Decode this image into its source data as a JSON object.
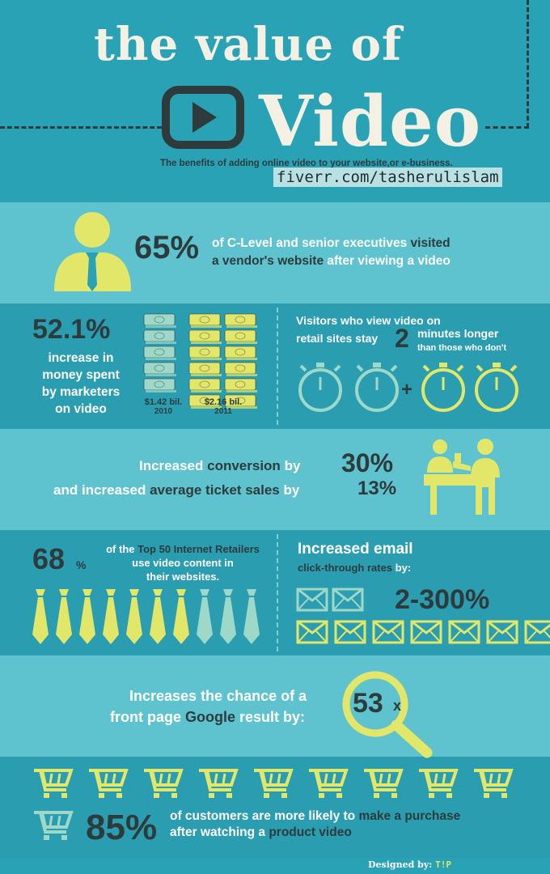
{
  "header": {
    "title_line1": "the value of",
    "title_line2": "Video",
    "subtitle": "The benefits of adding online video to your website,or e-business.",
    "handle": "fiverr.com/tasherulislam"
  },
  "stat_executives": {
    "value": "65%",
    "text_a": "of C-Level and senior executives",
    "text_b": "visited",
    "text_c": "a vendor's website",
    "text_d": "after viewing a video"
  },
  "stat_money": {
    "value": "52.1%",
    "line1": "increase in",
    "line2": "money spent",
    "line3": "by marketers",
    "line4": "on video",
    "bar_2010_amount": "$1.42 bil.",
    "bar_2010_year": "2010",
    "bar_2011_amount": "$2.16 bil.",
    "bar_2011_year": "2011"
  },
  "stat_retail": {
    "line1": "Visitors who view video on",
    "line2a": "retail sites stay",
    "value": "2",
    "line2b": "minutes longer",
    "line3": "than those who don't",
    "plus": "+"
  },
  "stat_conversion": {
    "line1a": "Increased",
    "line1b": "conversion",
    "line1c": "by",
    "value1": "30%",
    "line2a": "and increased",
    "line2b": "average ticket",
    "line2c": "sales",
    "line2d": "by",
    "value2": "13%"
  },
  "stat_retailers": {
    "value": "68",
    "pct": "%",
    "line1a": "of the",
    "line1b": "Top 50 Internet Retailers",
    "line2": "use video content in",
    "line3": "their websites.",
    "highlighted_ties": 7,
    "total_ties": 10
  },
  "stat_email": {
    "line1": "Increased email",
    "line2a": "click-through rates",
    "line2b": "by:",
    "value": "2-300%"
  },
  "stat_google": {
    "line1": "Increases the chance of a",
    "line2a": "front page",
    "line2b": "Google",
    "line2c": "result by:",
    "value": "53",
    "suffix": "x"
  },
  "stat_purchase": {
    "value": "85%",
    "line1a": "of customers are more likely to",
    "line1b": "make a purchase",
    "line2a": "after watching a",
    "line2b": "product video"
  },
  "footer": {
    "designed_by": "Designed by:",
    "brand": "T!P"
  },
  "colors": {
    "accent_yellow": "#e2e76a",
    "muted_teal": "#9ed8c8",
    "dark": "#2d3b3c",
    "band_light": "#5fc3cf",
    "band_dark": "#2b9db1"
  }
}
